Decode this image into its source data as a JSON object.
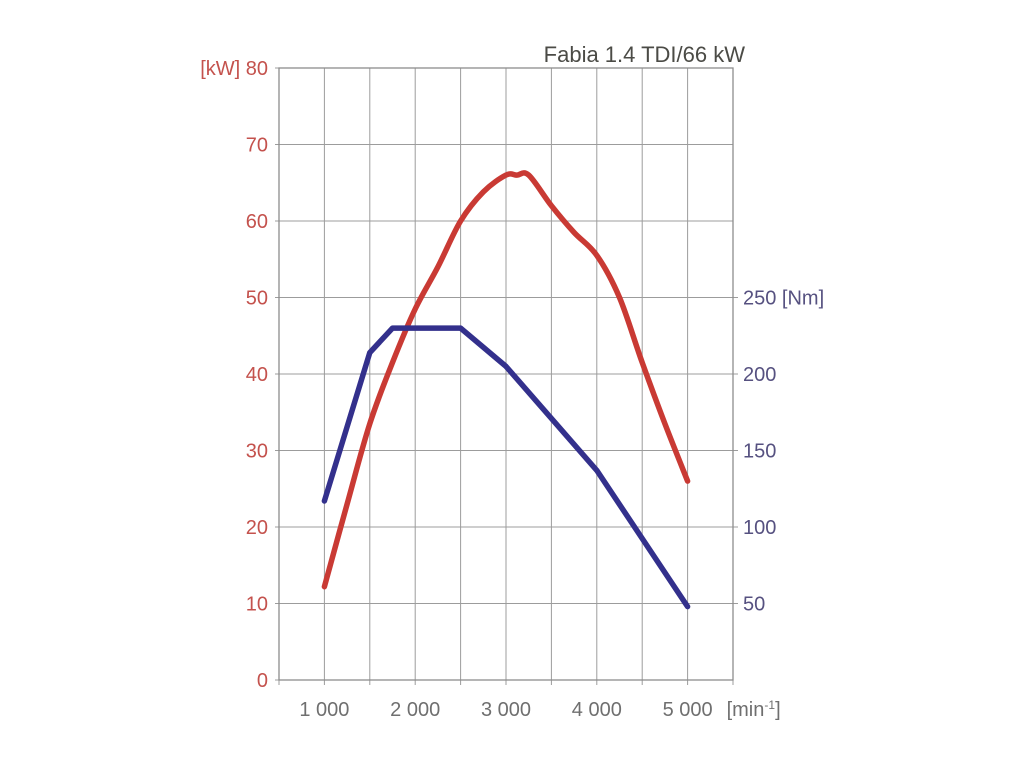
{
  "title": "Fabia 1.4 TDI/66 kW",
  "chart_data": {
    "type": "line",
    "title": "Fabia 1.4 TDI/66 kW",
    "title_color": "#4b4b46",
    "grid": {
      "show": true,
      "color": "#9c9c9c",
      "border_color": "#8d8d8d"
    },
    "x_axis": {
      "range": [
        500,
        5500
      ],
      "gridline_step": 500,
      "tick_values": [
        1000,
        2000,
        3000,
        4000,
        5000
      ],
      "tick_labels": [
        "1 000",
        "2 000",
        "3 000",
        "4 000",
        "5 000"
      ],
      "unit_pre": "[min",
      "unit_sup": "-1",
      "unit_post": "]",
      "label_color": "#6f6f6f"
    },
    "left_axis": {
      "unit": "[kW]",
      "range": [
        0,
        80
      ],
      "tick_step": 10,
      "tick_values": [
        0,
        10,
        20,
        30,
        40,
        50,
        60,
        70,
        80
      ],
      "label_color": "#c4524d"
    },
    "right_axis": {
      "unit": "[Nm]",
      "range": [
        0,
        400
      ],
      "tick_values": [
        50,
        100,
        150,
        200,
        250
      ],
      "label_color": "#565180"
    },
    "series": [
      {
        "name": "power",
        "axis": "left",
        "unit": "kW",
        "color": "#c93a34",
        "smooth": true,
        "x": [
          1000,
          1250,
          1500,
          1750,
          2000,
          2250,
          2500,
          2750,
          3000,
          3120,
          3250,
          3500,
          3750,
          4000,
          4250,
          4500,
          4750,
          5000
        ],
        "values": [
          12.2,
          23,
          33.5,
          41.5,
          48.5,
          54,
          60,
          63.8,
          66,
          66,
          66,
          62,
          58.5,
          55.5,
          50,
          41.5,
          33.5,
          26
        ]
      },
      {
        "name": "torque",
        "axis": "right",
        "unit": "Nm",
        "color": "#33308c",
        "smooth": false,
        "x": [
          1000,
          1500,
          1750,
          2500,
          3000,
          4000,
          5000
        ],
        "values": [
          117,
          214,
          230,
          230,
          205,
          137,
          48
        ]
      }
    ]
  }
}
